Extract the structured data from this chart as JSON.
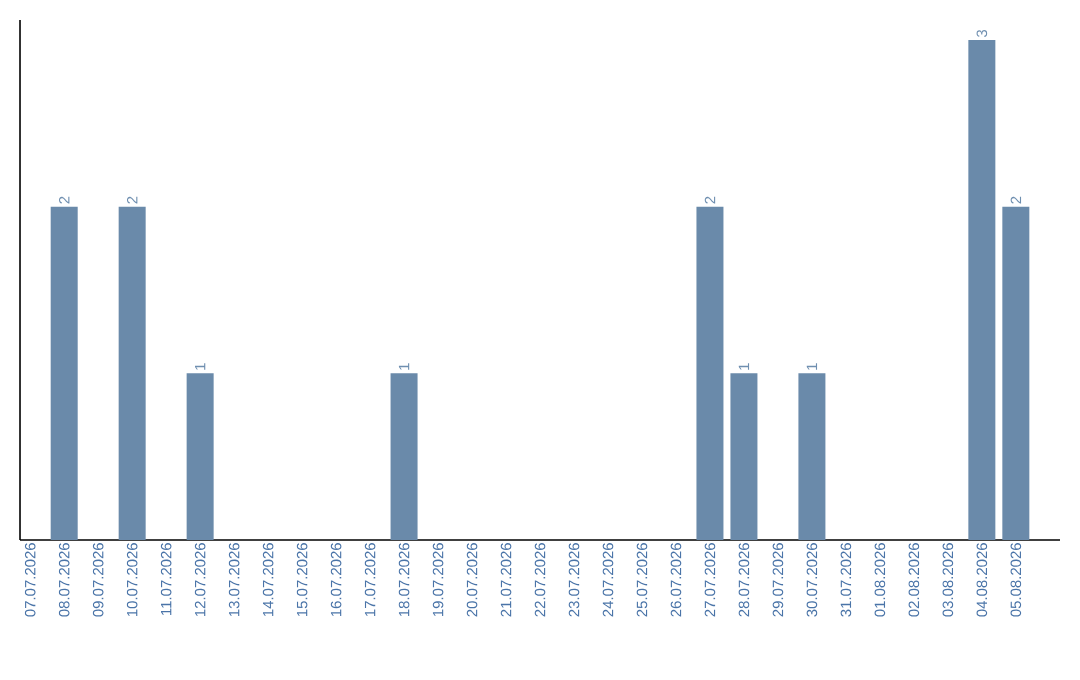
{
  "chart_data": {
    "type": "bar",
    "categories": [
      "07.07.2026",
      "08.07.2026",
      "09.07.2026",
      "10.07.2026",
      "11.07.2026",
      "12.07.2026",
      "13.07.2026",
      "14.07.2026",
      "15.07.2026",
      "16.07.2026",
      "17.07.2026",
      "18.07.2026",
      "19.07.2026",
      "20.07.2026",
      "21.07.2026",
      "22.07.2026",
      "23.07.2026",
      "24.07.2026",
      "25.07.2026",
      "26.07.2026",
      "27.07.2026",
      "28.07.2026",
      "29.07.2026",
      "30.07.2026",
      "31.07.2026",
      "01.08.2026",
      "02.08.2026",
      "03.08.2026",
      "04.08.2026",
      "05.08.2026"
    ],
    "values": [
      0,
      2,
      0,
      2,
      0,
      1,
      0,
      0,
      0,
      0,
      0,
      1,
      0,
      0,
      0,
      0,
      0,
      0,
      0,
      0,
      2,
      1,
      0,
      1,
      0,
      0,
      0,
      0,
      3,
      2
    ],
    "value_labels": [
      null,
      "2",
      null,
      "2",
      null,
      "1",
      null,
      null,
      null,
      null,
      null,
      "1",
      null,
      null,
      null,
      null,
      null,
      null,
      null,
      null,
      "2",
      "1",
      null,
      "1",
      null,
      null,
      null,
      null,
      "3",
      "2"
    ],
    "color": "#6a8aaa"
  }
}
